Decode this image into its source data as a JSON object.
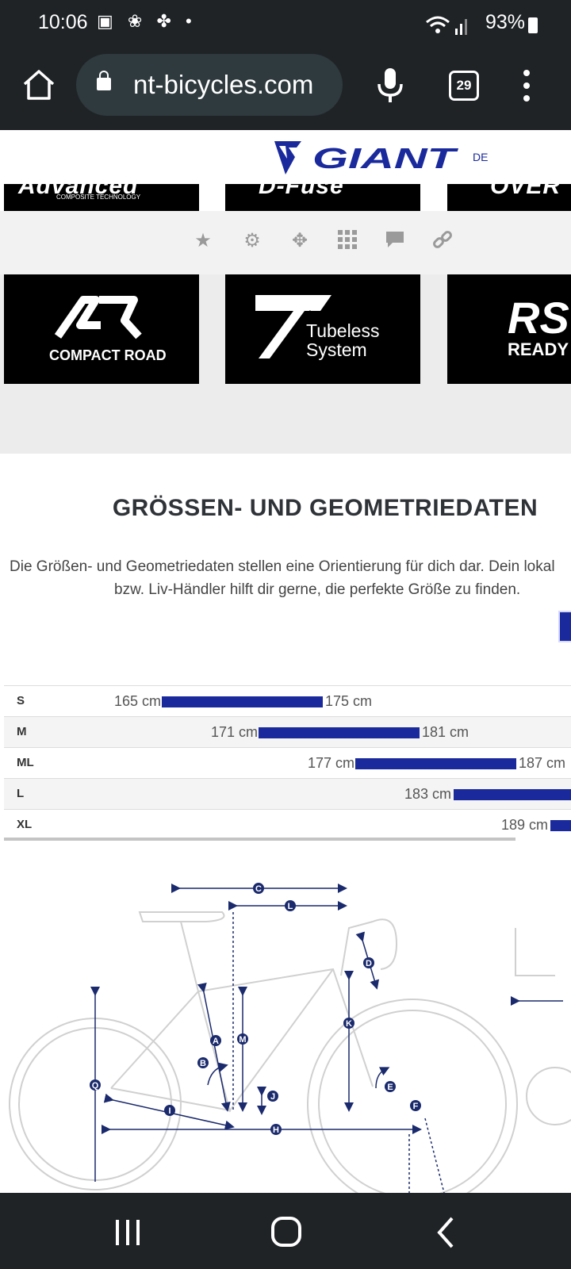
{
  "status": {
    "time": "10:06",
    "battery": "93%"
  },
  "browser": {
    "url": "nt-bicycles.com",
    "tab_count": "29"
  },
  "header": {
    "brand": "GIANT",
    "language": "DE"
  },
  "badges_top": [
    "Advanced",
    "COMPOSITE TECHNOLOGY",
    "D-Fuse",
    "OVER"
  ],
  "badges": [
    {
      "label": "COMPACT ROAD"
    },
    {
      "label": "Tubeless",
      "label2": "System"
    },
    {
      "label": "RS",
      "label2": "READY"
    }
  ],
  "section": {
    "title": "GRÖSSEN- UND GEOMETRIEDATEN",
    "desc_line1": "Die Größen- und Geometriedaten stellen eine Orientierung für dich dar. Dein lokal",
    "desc_line2": "bzw. Liv-Händler hilft dir gerne, die perfekte Größe zu finden."
  },
  "sizes": [
    {
      "size": "S",
      "min": "165 cm",
      "max": "175 cm"
    },
    {
      "size": "M",
      "min": "171 cm",
      "max": "181 cm"
    },
    {
      "size": "ML",
      "min": "177 cm",
      "max": "187 cm"
    },
    {
      "size": "L",
      "min": "183 cm",
      "max": ""
    },
    {
      "size": "XL",
      "min": "189 cm",
      "max": ""
    }
  ],
  "geometry_labels": [
    "C",
    "L",
    "D",
    "K",
    "M",
    "A",
    "B",
    "Q",
    "J",
    "E",
    "F",
    "I",
    "H"
  ]
}
